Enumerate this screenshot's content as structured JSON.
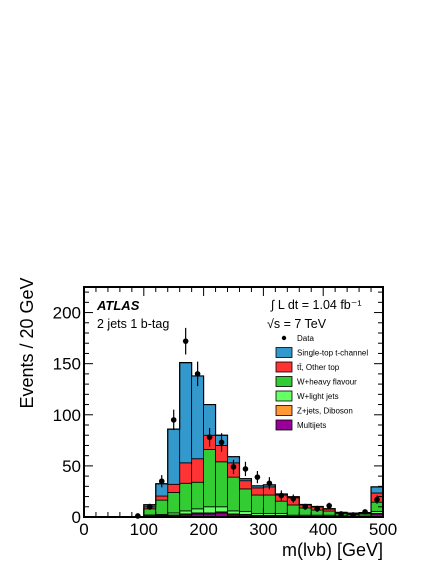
{
  "chart_data": {
    "type": "bar",
    "stacked": true,
    "xlabel": "m(lνb) [GeV]",
    "ylabel": "Events / 20 GeV",
    "xlim": [
      0,
      500
    ],
    "ylim": [
      0,
      225
    ],
    "x_ticks": [
      "0",
      "100",
      "200",
      "300",
      "400",
      "500"
    ],
    "y_ticks": [
      "0",
      "50",
      "100",
      "150",
      "200"
    ],
    "x_ticks_values": [
      0,
      100,
      200,
      300,
      400,
      500
    ],
    "y_ticks_values": [
      0,
      50,
      100,
      150,
      200
    ],
    "bin_edges": [
      0,
      20,
      40,
      60,
      80,
      100,
      120,
      140,
      160,
      180,
      200,
      220,
      240,
      260,
      280,
      300,
      320,
      340,
      360,
      380,
      400,
      420,
      440,
      460,
      480,
      500
    ],
    "series": [
      {
        "name": "Multijets",
        "color": "#990099",
        "values": [
          0,
          0,
          0,
          0,
          0,
          0.5,
          1,
          1,
          2,
          3,
          3,
          4,
          2,
          2,
          1,
          1,
          1,
          0.5,
          0.5,
          0.5,
          0.5,
          0.5,
          0.3,
          0.3,
          3
        ]
      },
      {
        "name": "Z+jets, Diboson",
        "color": "#ff9933",
        "values": [
          0,
          0,
          0,
          0,
          0,
          0.5,
          0.5,
          1,
          1,
          1,
          1,
          1,
          1,
          0.5,
          0.5,
          0.5,
          0.5,
          0.3,
          0.3,
          0.3,
          0.3,
          0.2,
          0.2,
          0.2,
          0.5
        ]
      },
      {
        "name": "W+light jets",
        "color": "#66ff66",
        "values": [
          0,
          0,
          0,
          0,
          0,
          1,
          1,
          2,
          3,
          4,
          6,
          5,
          3,
          3,
          2,
          2,
          2,
          1,
          1,
          1,
          1,
          0.5,
          0.5,
          0.5,
          2
        ]
      },
      {
        "name": "W+heavy flavour",
        "color": "#33cc33",
        "values": [
          0,
          0,
          0,
          0,
          0,
          6,
          14,
          20,
          27,
          26,
          56,
          44,
          33,
          22,
          18,
          18,
          12,
          10,
          7,
          5,
          4,
          2,
          1.5,
          2,
          9
        ]
      },
      {
        "name": "tt̄, Other top",
        "color": "#ff3333",
        "values": [
          0,
          0,
          0,
          0,
          0,
          2,
          4,
          8,
          20,
          23,
          14,
          16,
          14,
          8,
          7,
          8,
          6,
          7,
          3,
          3,
          2,
          1,
          1,
          1,
          9
        ]
      },
      {
        "name": "Single-top t-channel",
        "color": "#3399cc",
        "values": [
          0,
          0,
          0,
          0,
          0,
          2,
          12,
          54,
          98,
          81,
          30,
          10,
          6,
          2,
          2,
          2,
          1,
          1,
          0.5,
          0.5,
          0.3,
          0.3,
          0.3,
          0.3,
          6
        ]
      }
    ],
    "data": {
      "name": "Data",
      "x": [
        90,
        110,
        130,
        150,
        170,
        190,
        210,
        230,
        250,
        270,
        290,
        310,
        330,
        350,
        370,
        390,
        410,
        430,
        450,
        470,
        490
      ],
      "y": [
        1,
        10,
        35,
        95,
        172,
        140,
        78,
        73,
        49,
        47,
        39,
        33,
        21,
        18,
        10,
        8,
        11,
        3,
        2,
        5,
        17
      ],
      "err": [
        1,
        3,
        6,
        10,
        13,
        12,
        9,
        9,
        7,
        7,
        6,
        6,
        5,
        4,
        3,
        3,
        3,
        2,
        1.5,
        2,
        4
      ]
    },
    "annotations": {
      "experiment": "ATLAS",
      "selection": "2 jets 1 b-tag",
      "luminosity": "∫ L dt = 1.04 fb⁻¹",
      "energy": "√s = 7 TeV"
    },
    "legend": {
      "placement": "top-right",
      "entries": [
        "Data",
        "Single-top t-channel",
        "tt̄, Other top",
        "W+heavy flavour",
        "W+light jets",
        "Z+jets, Diboson",
        "Multijets"
      ]
    }
  }
}
